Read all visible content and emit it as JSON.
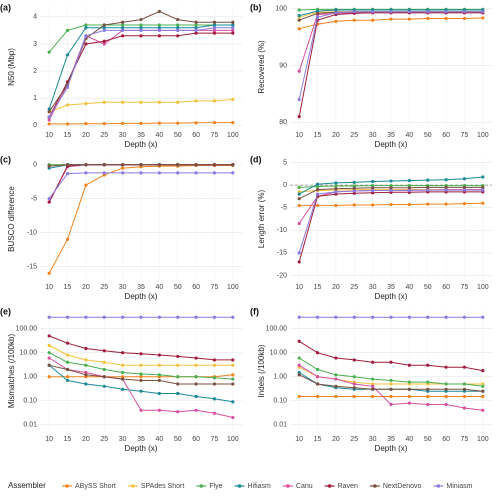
{
  "chart_data": [
    {
      "type": "line",
      "label": "(a)",
      "ylabel": "N50 (Mbp)",
      "xlabel": "Depth (x)",
      "categories": [
        "10",
        "15",
        "20",
        "25",
        "30",
        "35",
        "40",
        "50",
        "60",
        "75",
        "100"
      ],
      "ylim": [
        -0.1,
        4.4
      ],
      "yticks": [
        0,
        1,
        2,
        3,
        4
      ],
      "grid": true,
      "series": [
        {
          "name": "ABySS Short",
          "color": "#f0831e",
          "values": [
            0.05,
            0.05,
            0.06,
            0.06,
            0.07,
            0.07,
            0.08,
            0.08,
            0.09,
            0.1,
            0.1
          ]
        },
        {
          "name": "SPAdes Short",
          "color": "#f2c23e",
          "values": [
            0.5,
            0.75,
            0.8,
            0.85,
            0.85,
            0.85,
            0.85,
            0.85,
            0.9,
            0.9,
            0.95
          ]
        },
        {
          "name": "Flye",
          "color": "#4caf50",
          "values": [
            2.7,
            3.5,
            3.7,
            3.7,
            3.7,
            3.7,
            3.7,
            3.7,
            3.7,
            3.7,
            3.7
          ]
        },
        {
          "name": "Hifiasm",
          "color": "#1a8a9a",
          "values": [
            0.6,
            2.6,
            3.6,
            3.6,
            3.6,
            3.6,
            3.6,
            3.6,
            3.6,
            3.7,
            3.7
          ]
        },
        {
          "name": "Canu",
          "color": "#d94fa0",
          "values": [
            0.2,
            1.5,
            3.3,
            3.0,
            3.5,
            3.5,
            3.5,
            3.5,
            3.5,
            3.5,
            3.5
          ]
        },
        {
          "name": "Raven",
          "color": "#a01c3a",
          "values": [
            0.3,
            1.6,
            3.0,
            3.1,
            3.3,
            3.3,
            3.3,
            3.3,
            3.4,
            3.4,
            3.4
          ]
        },
        {
          "name": "NextDenovo",
          "color": "#7a5040",
          "values": [
            0.5,
            1.5,
            3.2,
            3.7,
            3.8,
            3.9,
            4.2,
            3.9,
            3.8,
            3.8,
            3.8
          ]
        },
        {
          "name": "Miniasm",
          "color": "#8a7be0",
          "values": [
            0.3,
            1.4,
            3.3,
            3.5,
            3.5,
            3.5,
            3.5,
            3.5,
            3.5,
            3.6,
            3.6
          ]
        }
      ]
    },
    {
      "type": "line",
      "label": "(b)",
      "ylabel": "Recovered (%)",
      "xlabel": "Depth (x)",
      "categories": [
        "10",
        "15",
        "20",
        "25",
        "30",
        "35",
        "40",
        "50",
        "60",
        "75",
        "100"
      ],
      "ylim": [
        79,
        100.5
      ],
      "yticks": [
        80,
        90,
        100
      ],
      "grid": true,
      "series": [
        {
          "name": "ABySS Short",
          "color": "#f0831e",
          "values": [
            96.5,
            97.3,
            97.8,
            98,
            98,
            98.2,
            98.2,
            98.3,
            98.3,
            98.3,
            98.4
          ]
        },
        {
          "name": "SPAdes Short",
          "color": "#f2c23e",
          "values": [
            98.5,
            99.4,
            99.5,
            99.5,
            99.5,
            99.5,
            99.5,
            99.5,
            99.5,
            99.5,
            99.5
          ]
        },
        {
          "name": "Flye",
          "color": "#4caf50",
          "values": [
            99.8,
            99.9,
            99.9,
            99.9,
            99.9,
            99.9,
            99.9,
            99.9,
            99.9,
            99.9,
            99.9
          ]
        },
        {
          "name": "Hifiasm",
          "color": "#1a8a9a",
          "values": [
            98.8,
            99.6,
            99.8,
            99.8,
            99.8,
            99.8,
            99.8,
            99.8,
            99.8,
            99.8,
            99.8
          ]
        },
        {
          "name": "Canu",
          "color": "#d94fa0",
          "values": [
            89,
            99,
            99.2,
            99.3,
            99.3,
            99.3,
            99.3,
            99.3,
            99.3,
            99.3,
            99.3
          ]
        },
        {
          "name": "Raven",
          "color": "#a01c3a",
          "values": [
            81,
            98,
            99,
            99.2,
            99.3,
            99.3,
            99.3,
            99.3,
            99.3,
            99.3,
            99.3
          ]
        },
        {
          "name": "NextDenovo",
          "color": "#7a5040",
          "values": [
            98,
            99.2,
            99.4,
            99.5,
            99.5,
            99.5,
            99.5,
            99.5,
            99.5,
            99.5,
            99.5
          ]
        },
        {
          "name": "Miniasm",
          "color": "#8a7be0",
          "values": [
            84,
            98.5,
            99.3,
            99.5,
            99.5,
            99.5,
            99.5,
            99.5,
            99.5,
            99.5,
            99.5
          ]
        }
      ]
    },
    {
      "type": "line",
      "label": "(c)",
      "ylabel": "BUSCO difference",
      "xlabel": "Depth (x)",
      "categories": [
        "10",
        "15",
        "20",
        "25",
        "30",
        "35",
        "40",
        "50",
        "60",
        "75",
        "100"
      ],
      "ylim": [
        -17,
        1
      ],
      "yticks": [
        -15,
        -10,
        -5,
        0
      ],
      "grid": true,
      "series": [
        {
          "name": "ABySS Short",
          "color": "#f0831e",
          "values": [
            -16,
            -11,
            -3,
            -1.5,
            -0.5,
            -0.3,
            -0.2,
            -0.2,
            -0.1,
            -0.1,
            -0.1
          ]
        },
        {
          "name": "SPAdes Short",
          "color": "#f2c23e",
          "values": [
            0,
            0,
            0,
            0,
            0,
            0,
            0,
            0,
            0,
            0,
            0
          ]
        },
        {
          "name": "Flye",
          "color": "#4caf50",
          "values": [
            0,
            0,
            0,
            0,
            0,
            0,
            0,
            0,
            0,
            0,
            0
          ]
        },
        {
          "name": "Hifiasm",
          "color": "#1a8a9a",
          "values": [
            -0.5,
            0,
            0,
            0,
            0,
            0,
            0,
            0,
            0,
            0,
            0
          ]
        },
        {
          "name": "Canu",
          "color": "#d94fa0",
          "values": [
            -5.5,
            -0.3,
            0,
            0,
            0,
            0,
            0,
            0,
            0,
            0,
            0
          ]
        },
        {
          "name": "Raven",
          "color": "#a01c3a",
          "values": [
            -5.5,
            -0.2,
            0,
            0,
            0,
            0,
            0,
            0,
            0,
            0,
            0
          ]
        },
        {
          "name": "NextDenovo",
          "color": "#7a5040",
          "values": [
            -0.2,
            0,
            0,
            0,
            0,
            0,
            0,
            0,
            0,
            0,
            0
          ]
        },
        {
          "name": "Miniasm",
          "color": "#8a7be0",
          "values": [
            -5,
            -1.3,
            -1.2,
            -1.2,
            -1.2,
            -1.2,
            -1.2,
            -1.2,
            -1.2,
            -1.2,
            -1.2
          ]
        }
      ]
    },
    {
      "type": "line",
      "label": "(d)",
      "ylabel": "Length error (%)",
      "xlabel": "Depth (x)",
      "categories": [
        "10",
        "15",
        "20",
        "25",
        "30",
        "35",
        "40",
        "50",
        "60",
        "75",
        "100"
      ],
      "ylim": [
        -21,
        6
      ],
      "yticks": [
        -20,
        -15,
        -10,
        -5,
        0,
        5
      ],
      "grid": true,
      "reference_line": 0,
      "series": [
        {
          "name": "ABySS Short",
          "color": "#f0831e",
          "values": [
            -4.5,
            -4.5,
            -4.5,
            -4.4,
            -4.4,
            -4.3,
            -4.3,
            -4.2,
            -4.2,
            -4.1,
            -4
          ]
        },
        {
          "name": "SPAdes Short",
          "color": "#f2c23e",
          "values": [
            -1.5,
            -1.2,
            -1.1,
            -1,
            -1,
            -1,
            -1,
            -1,
            -1,
            -1,
            -1
          ]
        },
        {
          "name": "Flye",
          "color": "#4caf50",
          "values": [
            -0.5,
            -0.3,
            -0.2,
            -0.2,
            -0.1,
            -0.1,
            -0.1,
            -0.1,
            -0.1,
            -0.1,
            -0.1
          ]
        },
        {
          "name": "Hifiasm",
          "color": "#1a8a9a",
          "values": [
            -2,
            0.2,
            0.5,
            0.6,
            0.8,
            0.9,
            1,
            1.1,
            1.2,
            1.4,
            1.8
          ]
        },
        {
          "name": "Canu",
          "color": "#d94fa0",
          "values": [
            -8.5,
            -2.5,
            -1.5,
            -1.3,
            -1.2,
            -1.2,
            -1.1,
            -1.1,
            -1,
            -1,
            -1
          ]
        },
        {
          "name": "Raven",
          "color": "#a01c3a",
          "values": [
            -17,
            -2.5,
            -2,
            -1.8,
            -1.7,
            -1.6,
            -1.6,
            -1.5,
            -1.5,
            -1.5,
            -1.5
          ]
        },
        {
          "name": "NextDenovo",
          "color": "#7a5040",
          "values": [
            -3,
            -1,
            -0.8,
            -0.7,
            -0.6,
            -0.6,
            -0.6,
            -0.5,
            -0.5,
            -0.5,
            -0.5
          ]
        },
        {
          "name": "Miniasm",
          "color": "#8a7be0",
          "values": [
            -15,
            -2,
            -1.5,
            -1.3,
            -1.2,
            -1.2,
            -1.2,
            -1.1,
            -1.1,
            -1.1,
            -1.1
          ]
        }
      ]
    },
    {
      "type": "line",
      "label": "(e)",
      "ylabel": "Mismatches (/100kb)",
      "xlabel": "Depth (x)",
      "log_scale": true,
      "categories": [
        "10",
        "15",
        "20",
        "25",
        "30",
        "35",
        "40",
        "50",
        "60",
        "75",
        "100"
      ],
      "ylim": [
        0.005,
        600
      ],
      "yticks": [
        0.01,
        {
          "value": 0.1,
          "label": "0.10"
        },
        {
          "value": 1,
          "label": "1.00"
        },
        {
          "value": 10,
          "label": "10.00"
        },
        {
          "value": 100,
          "label": "100.00"
        }
      ],
      "grid": true,
      "series": [
        {
          "name": "ABySS Short",
          "color": "#f0831e",
          "values": [
            1,
            1,
            1,
            1,
            1,
            1,
            1,
            1,
            1,
            1,
            1.2
          ]
        },
        {
          "name": "SPAdes Short",
          "color": "#f2c23e",
          "values": [
            20,
            8,
            5,
            4,
            3,
            3,
            3,
            3,
            3,
            3,
            3
          ]
        },
        {
          "name": "Flye",
          "color": "#4caf50",
          "values": [
            10,
            4,
            3,
            2,
            1.5,
            1.3,
            1.2,
            1,
            1,
            0.9,
            0.8
          ]
        },
        {
          "name": "Hifiasm",
          "color": "#1a8a9a",
          "values": [
            3,
            0.7,
            0.5,
            0.4,
            0.3,
            0.25,
            0.2,
            0.2,
            0.15,
            0.12,
            0.09
          ]
        },
        {
          "name": "Canu",
          "color": "#d94fa0",
          "values": [
            6,
            2,
            1.5,
            1,
            0.8,
            0.04,
            0.04,
            0.035,
            0.04,
            0.03,
            0.02
          ]
        },
        {
          "name": "Raven",
          "color": "#a01c3a",
          "values": [
            50,
            25,
            15,
            12,
            10,
            9,
            8,
            7,
            6,
            5,
            5
          ]
        },
        {
          "name": "NextDenovo",
          "color": "#7a5040",
          "values": [
            3,
            2,
            1.2,
            1,
            0.8,
            0.7,
            0.7,
            0.5,
            0.5,
            0.5,
            0.5
          ]
        },
        {
          "name": "Miniasm",
          "color": "#8a7be0",
          "values": [
            300,
            300,
            300,
            300,
            300,
            300,
            300,
            300,
            300,
            300,
            300
          ]
        }
      ]
    },
    {
      "type": "line",
      "label": "(f)",
      "ylabel": "Indels (/100kb)",
      "xlabel": "Depth (x)",
      "log_scale": true,
      "categories": [
        "10",
        "15",
        "20",
        "25",
        "30",
        "35",
        "40",
        "50",
        "60",
        "75",
        "100"
      ],
      "ylim": [
        0.005,
        600
      ],
      "yticks": [
        0.01,
        {
          "value": 0.1,
          "label": "0.10"
        },
        {
          "value": 1,
          "label": "1.00"
        },
        {
          "value": 10,
          "label": "10.00"
        },
        {
          "value": 100,
          "label": "100.00"
        }
      ],
      "grid": true,
      "series": [
        {
          "name": "ABySS Short",
          "color": "#f0831e",
          "values": [
            0.15,
            0.15,
            0.15,
            0.15,
            0.15,
            0.15,
            0.15,
            0.15,
            0.15,
            0.15,
            0.15
          ]
        },
        {
          "name": "SPAdes Short",
          "color": "#f2c23e",
          "values": [
            2.5,
            1,
            0.8,
            0.6,
            0.5,
            0.5,
            0.5,
            0.5,
            0.5,
            0.5,
            0.5
          ]
        },
        {
          "name": "Flye",
          "color": "#4caf50",
          "values": [
            6,
            2,
            1.2,
            1,
            0.8,
            0.7,
            0.6,
            0.6,
            0.5,
            0.5,
            0.4
          ]
        },
        {
          "name": "Hifiasm",
          "color": "#1a8a9a",
          "values": [
            1.5,
            0.5,
            0.35,
            0.3,
            0.3,
            0.3,
            0.3,
            0.25,
            0.25,
            0.25,
            0.25
          ]
        },
        {
          "name": "Canu",
          "color": "#d94fa0",
          "values": [
            3,
            1,
            0.8,
            0.5,
            0.4,
            0.07,
            0.08,
            0.07,
            0.07,
            0.05,
            0.04
          ]
        },
        {
          "name": "Raven",
          "color": "#a01c3a",
          "values": [
            30,
            10,
            6,
            5,
            4,
            4,
            3,
            3,
            2.5,
            2.5,
            1.8
          ]
        },
        {
          "name": "NextDenovo",
          "color": "#7a5040",
          "values": [
            1.2,
            0.5,
            0.4,
            0.35,
            0.3,
            0.3,
            0.3,
            0.3,
            0.3,
            0.3,
            0.25
          ]
        },
        {
          "name": "Miniasm",
          "color": "#8a7be0",
          "values": [
            300,
            300,
            300,
            300,
            300,
            300,
            300,
            300,
            300,
            300,
            300
          ]
        }
      ]
    }
  ],
  "legend": {
    "title": "Assembler",
    "position": "bottom"
  }
}
